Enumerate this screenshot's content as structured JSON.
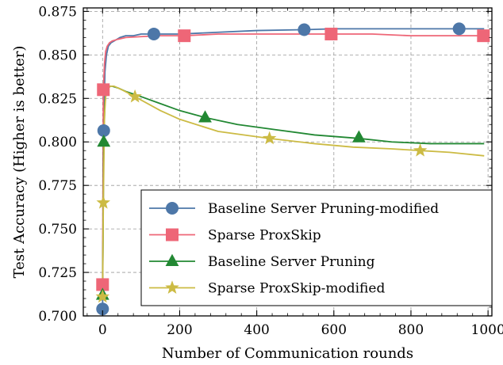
{
  "chart_data": {
    "type": "line",
    "title": "",
    "xlabel": "Number of Communication rounds",
    "ylabel": "Test Accuracy (Higher is better)",
    "xlim": [
      -50,
      1010
    ],
    "ylim": [
      0.7,
      0.877
    ],
    "xticks": [
      0,
      200,
      400,
      600,
      800,
      1000
    ],
    "xtick_labels": [
      "0",
      "200",
      "400",
      "600",
      "800",
      "1000"
    ],
    "yticks": [
      0.7,
      0.725,
      0.75,
      0.775,
      0.8,
      0.825,
      0.85,
      0.875
    ],
    "ytick_labels": [
      "0.700",
      "0.725",
      "0.750",
      "0.775",
      "0.800",
      "0.825",
      "0.850",
      "0.875"
    ],
    "grid": true,
    "legend_position": "lower-right",
    "series": [
      {
        "name": "Baseline Server Pruning-modified",
        "color": "#4d77a8",
        "marker": "circle",
        "x": [
          0,
          3,
          6,
          10,
          15,
          22,
          30,
          45,
          60,
          80,
          100,
          133,
          200,
          300,
          400,
          523,
          600,
          700,
          800,
          925,
          990
        ],
        "y": [
          0.704,
          0.806,
          0.84,
          0.85,
          0.855,
          0.857,
          0.858,
          0.86,
          0.861,
          0.861,
          0.862,
          0.862,
          0.862,
          0.863,
          0.864,
          0.8645,
          0.865,
          0.865,
          0.865,
          0.865,
          0.865
        ],
        "marker_points": [
          [
            0,
            0.704
          ],
          [
            3,
            0.8065
          ],
          [
            133,
            0.862
          ],
          [
            523,
            0.8645
          ],
          [
            925,
            0.865
          ]
        ]
      },
      {
        "name": "Sparse ProxSkip",
        "color": "#ee6677",
        "marker": "square",
        "x": [
          0,
          2,
          5,
          8,
          12,
          18,
          25,
          40,
          60,
          100,
          150,
          212,
          300,
          400,
          500,
          593,
          700,
          800,
          900,
          988
        ],
        "y": [
          0.718,
          0.83,
          0.845,
          0.852,
          0.855,
          0.857,
          0.858,
          0.859,
          0.86,
          0.8605,
          0.861,
          0.861,
          0.862,
          0.862,
          0.862,
          0.862,
          0.862,
          0.861,
          0.861,
          0.861
        ],
        "marker_points": [
          [
            0,
            0.718
          ],
          [
            2,
            0.83
          ],
          [
            212,
            0.861
          ],
          [
            593,
            0.862
          ],
          [
            988,
            0.861
          ]
        ]
      },
      {
        "name": "Baseline Server Pruning",
        "color": "#228833",
        "marker": "triangle",
        "x": [
          0,
          3,
          6,
          10,
          15,
          25,
          40,
          60,
          100,
          150,
          200,
          266,
          350,
          450,
          550,
          665,
          750,
          850,
          990
        ],
        "y": [
          0.712,
          0.8,
          0.822,
          0.83,
          0.832,
          0.832,
          0.831,
          0.829,
          0.826,
          0.822,
          0.818,
          0.814,
          0.81,
          0.807,
          0.804,
          0.802,
          0.8,
          0.799,
          0.799
        ],
        "marker_points": [
          [
            0,
            0.712
          ],
          [
            3,
            0.8
          ],
          [
            266,
            0.814
          ],
          [
            665,
            0.8025
          ]
        ]
      },
      {
        "name": "Sparse ProxSkip-modified",
        "color": "#ccbb44",
        "marker": "star",
        "x": [
          0,
          2,
          5,
          8,
          12,
          20,
          30,
          50,
          84,
          150,
          200,
          300,
          433,
          550,
          650,
          750,
          824,
          900,
          990
        ],
        "y": [
          0.711,
          0.765,
          0.815,
          0.826,
          0.83,
          0.832,
          0.832,
          0.83,
          0.826,
          0.818,
          0.813,
          0.806,
          0.802,
          0.799,
          0.797,
          0.796,
          0.795,
          0.794,
          0.792
        ],
        "marker_points": [
          [
            0,
            0.711
          ],
          [
            2,
            0.765
          ],
          [
            84,
            0.826
          ],
          [
            433,
            0.802
          ],
          [
            824,
            0.795
          ]
        ]
      }
    ]
  }
}
